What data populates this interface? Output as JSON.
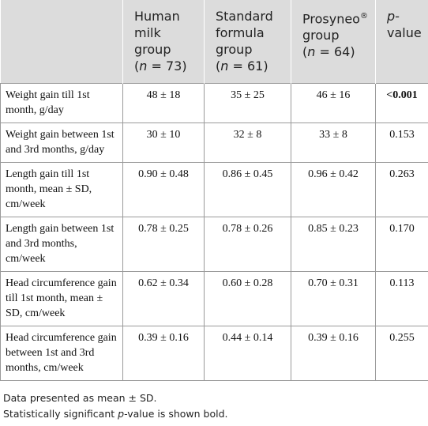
{
  "table": {
    "header": [
      {
        "lines": [
          [
            {
              "text": "",
              "style": "normal"
            }
          ]
        ]
      },
      {
        "lines": [
          [
            {
              "text": "Human",
              "style": "normal"
            }
          ],
          [
            {
              "text": "milk",
              "style": "normal"
            }
          ],
          [
            {
              "text": "group",
              "style": "normal"
            }
          ],
          [
            {
              "text": "(",
              "style": "normal"
            },
            {
              "text": "n",
              "style": "italic"
            },
            {
              "text": " = 73)",
              "style": "normal"
            }
          ]
        ]
      },
      {
        "lines": [
          [
            {
              "text": "Standard",
              "style": "normal"
            }
          ],
          [
            {
              "text": "formula",
              "style": "normal"
            }
          ],
          [
            {
              "text": "group",
              "style": "normal"
            }
          ],
          [
            {
              "text": "(",
              "style": "normal"
            },
            {
              "text": "n",
              "style": "italic"
            },
            {
              "text": " = 61)",
              "style": "normal"
            }
          ]
        ]
      },
      {
        "lines": [
          [
            {
              "text": "Prosyneo",
              "style": "normal"
            },
            {
              "text": "®",
              "style": "sup"
            }
          ],
          [
            {
              "text": "group",
              "style": "normal"
            }
          ],
          [
            {
              "text": "(",
              "style": "normal"
            },
            {
              "text": "n",
              "style": "italic"
            },
            {
              "text": " = 64)",
              "style": "normal"
            }
          ]
        ]
      },
      {
        "lines": [
          [
            {
              "text": "p-",
              "style": "italic"
            }
          ],
          [
            {
              "text": "value",
              "style": "normal"
            }
          ]
        ]
      }
    ],
    "rows": [
      {
        "label": "Weight gain till 1st month, g/day",
        "values": [
          "48 ± 18",
          "35 ± 25",
          "46 ± 16"
        ],
        "p_value": "<0.001",
        "p_bold": true
      },
      {
        "label": "Weight gain between 1st and 3rd months, g/day",
        "values": [
          "30 ± 10",
          "32 ± 8",
          "33 ± 8"
        ],
        "p_value": "0.153",
        "p_bold": false
      },
      {
        "label": "Length gain till 1st month, mean ± SD, cm/week",
        "values": [
          "0.90 ± 0.48",
          "0.86 ± 0.45",
          "0.96 ± 0.42"
        ],
        "p_value": "0.263",
        "p_bold": false
      },
      {
        "label": "Length gain between 1st and 3rd months, cm/week",
        "values": [
          "0.78 ± 0.25",
          "0.78 ± 0.26",
          "0.85 ± 0.23"
        ],
        "p_value": "0.170",
        "p_bold": false
      },
      {
        "label": "Head circumference gain till 1st month, mean ± SD, cm/week",
        "values": [
          "0.62 ± 0.34",
          "0.60 ± 0.28",
          "0.70 ± 0.31"
        ],
        "p_value": "0.113",
        "p_bold": false
      },
      {
        "label": "Head circumference gain between 1st and 3rd months, cm/week",
        "values": [
          "0.39 ± 0.16",
          "0.44 ± 0.14",
          "0.39 ± 0.16"
        ],
        "p_value": "0.255",
        "p_bold": false
      }
    ]
  },
  "footnotes": [
    [
      {
        "text": "Data presented as mean ± SD.",
        "style": "normal"
      }
    ],
    [
      {
        "text": "Statistically significant ",
        "style": "normal"
      },
      {
        "text": "p",
        "style": "italic"
      },
      {
        "text": "-value is shown bold.",
        "style": "normal"
      }
    ]
  ]
}
